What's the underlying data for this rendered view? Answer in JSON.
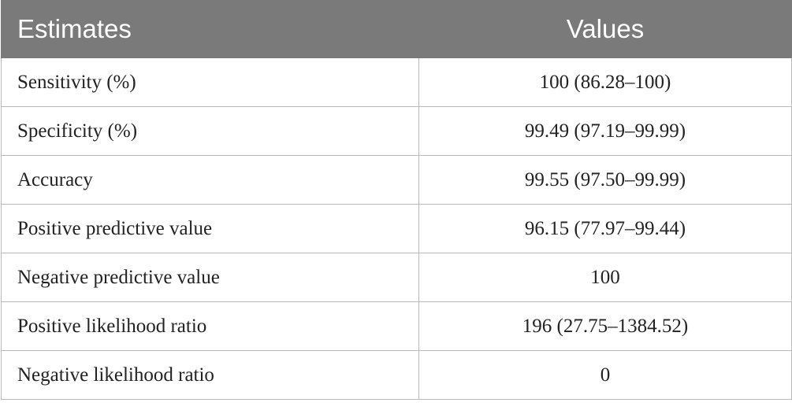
{
  "table": {
    "headers": {
      "estimates": "Estimates",
      "values": "Values"
    },
    "rows": [
      {
        "estimate": "Sensitivity (%)",
        "value": "100 (86.28–100)"
      },
      {
        "estimate": "Specificity (%)",
        "value": "99.49 (97.19–99.99)"
      },
      {
        "estimate": "Accuracy",
        "value": "99.55 (97.50–99.99)"
      },
      {
        "estimate": "Positive predictive value",
        "value": "96.15 (77.97–99.44)"
      },
      {
        "estimate": "Negative predictive value",
        "value": "100"
      },
      {
        "estimate": "Positive likelihood ratio",
        "value": "196 (27.75–1384.52)"
      },
      {
        "estimate": "Negative likelihood ratio",
        "value": "0"
      }
    ]
  },
  "colors": {
    "header_background": "#7a7a7a",
    "header_text": "#ffffff",
    "border": "#b9b9b9"
  }
}
